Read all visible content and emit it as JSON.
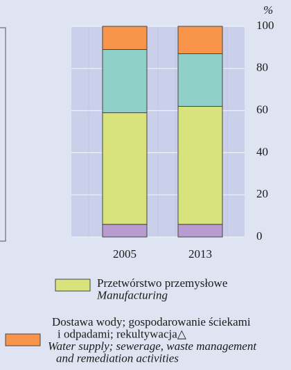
{
  "chart_data": {
    "type": "stacked-bar",
    "y_unit": "%",
    "categories": [
      "2005",
      "2013"
    ],
    "series": [
      {
        "color": "#b89cd0",
        "values": [
          6,
          6
        ]
      },
      {
        "name": [
          "Przetwórstwo przemysłowe"
        ],
        "name_en": [
          "Manufacturing"
        ],
        "color": "#d9e37e",
        "values": [
          53,
          56
        ]
      },
      {
        "color": "#8fd1c9",
        "values": [
          30,
          25
        ]
      },
      {
        "name": [
          "Dostawa wody; gospodarowanie ściekami",
          "i odpadami; rekultywacja△"
        ],
        "name_en": [
          "Water supply; sewerage, waste management",
          "and remediation activities"
        ],
        "color": "#f8954b",
        "values": [
          11,
          13
        ]
      }
    ],
    "ylim": [
      0,
      100
    ],
    "yticks": [
      0,
      20,
      40,
      60,
      80,
      100
    ],
    "grid": true
  }
}
